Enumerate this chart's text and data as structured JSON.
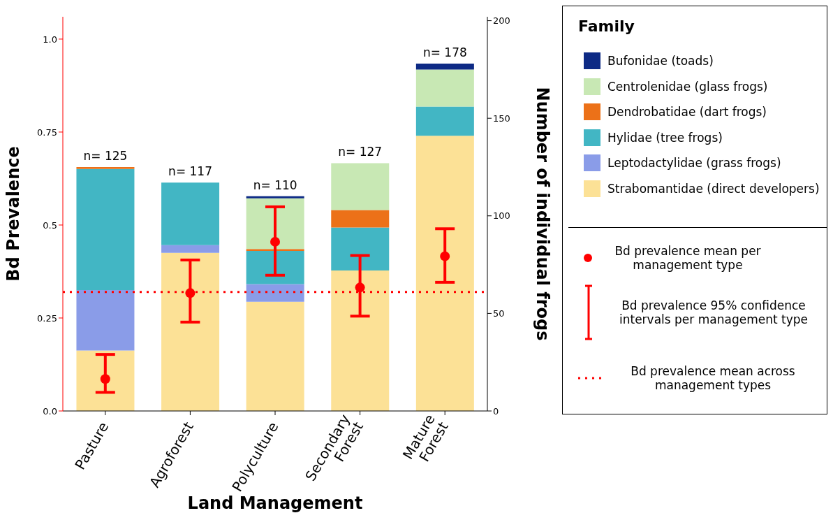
{
  "chart_data": {
    "type": "bar",
    "stacked": true,
    "xlabel": "Land Management",
    "ylabel": "Bd Prevalence",
    "y2label": "Number of individual frogs",
    "legend_title": "Family",
    "legend": "right",
    "marker": "circle",
    "categories": [
      "Pasture",
      "Agroforest",
      "Polyculture",
      "Secondary Forest",
      "Mature Forest"
    ],
    "ylim": [
      0,
      1.06
    ],
    "yticks": [
      {
        "value": 0,
        "label": "0.0"
      },
      0.25,
      0.5,
      0.75,
      {
        "value": 1,
        "label": "1.0"
      }
    ],
    "y2lim": [
      0,
      202
    ],
    "y2ticks": [
      0,
      50,
      100,
      150,
      200
    ],
    "series": [
      {
        "name": "Strabomantidae (direct developers)",
        "color": "#fce196",
        "axis": "y2",
        "values": [
          31,
          81,
          56,
          72,
          141
        ]
      },
      {
        "name": "Leptodactylidae (grass frogs)",
        "color": "#8a9ce8",
        "axis": "y2",
        "values": [
          31,
          4,
          9,
          0,
          0
        ]
      },
      {
        "name": "Hylidae (tree frogs)",
        "color": "#42b6c4",
        "axis": "y2",
        "values": [
          62,
          32,
          17,
          22,
          15
        ]
      },
      {
        "name": "Dendrobatidae (dart frogs)",
        "color": "#ec7118",
        "axis": "y2",
        "values": [
          1,
          0,
          1,
          9,
          0
        ]
      },
      {
        "name": "Centrolenidae (glass frogs)",
        "color": "#c8e8b4",
        "axis": "y2",
        "values": [
          0,
          0,
          26,
          24,
          19
        ]
      },
      {
        "name": "Bufonidae (toads)",
        "color": "#0d2a85",
        "axis": "y2",
        "values": [
          0,
          0,
          1,
          0,
          3
        ]
      },
      {
        "name": "Bd prevalence mean per management type",
        "type": "scatter",
        "color": "#ff0000",
        "axis": "y",
        "values": [
          0.086,
          0.317,
          0.455,
          0.332,
          0.416
        ],
        "errors": [
          [
            0.05,
            0.152
          ],
          [
            0.239,
            0.406
          ],
          [
            0.365,
            0.549
          ],
          [
            0.255,
            0.418
          ],
          [
            0.346,
            0.49
          ]
        ]
      }
    ],
    "totals": [
      "n= 125",
      "n= 117",
      "n= 110",
      "n= 127",
      "n= 178"
    ],
    "ref_lines": [
      {
        "axis": "y",
        "value": 0.32,
        "label": "Bd prevalence mean across management types",
        "color": "#ff0000",
        "line_style": "dotted"
      }
    ],
    "annotations": [
      "Bd prevalence 95% confidence intervals per management type"
    ]
  }
}
